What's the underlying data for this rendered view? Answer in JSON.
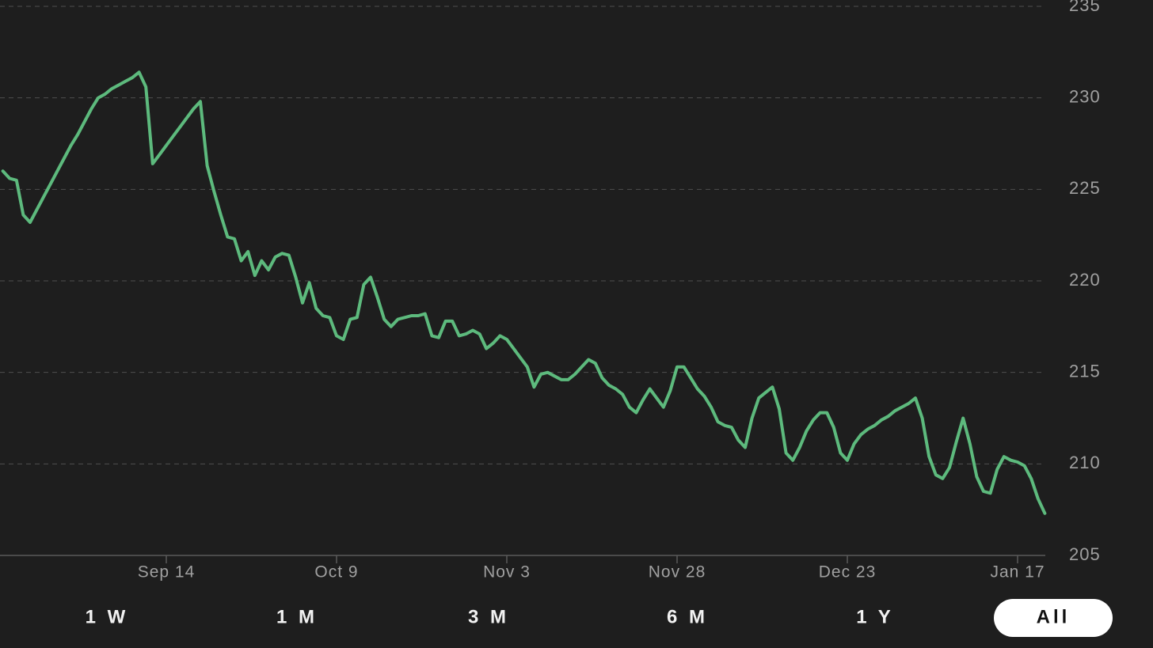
{
  "chart_data": {
    "type": "line",
    "categories": [
      null,
      null,
      null,
      null,
      null,
      null,
      null,
      null,
      null,
      null,
      null,
      null,
      null,
      null,
      null,
      null,
      null,
      null,
      null,
      null,
      null,
      null,
      null,
      null,
      "Sep 14",
      null,
      null,
      null,
      null,
      null,
      null,
      null,
      null,
      null,
      null,
      null,
      null,
      null,
      null,
      null,
      null,
      null,
      null,
      null,
      null,
      null,
      null,
      null,
      null,
      "Oct 9",
      null,
      null,
      null,
      null,
      null,
      null,
      null,
      null,
      null,
      null,
      null,
      null,
      null,
      null,
      null,
      null,
      null,
      null,
      null,
      null,
      null,
      null,
      null,
      null,
      "Nov 3",
      null,
      null,
      null,
      null,
      null,
      null,
      null,
      null,
      null,
      null,
      null,
      null,
      null,
      null,
      null,
      null,
      null,
      null,
      null,
      null,
      null,
      null,
      null,
      null,
      "Nov 28",
      null,
      null,
      null,
      null,
      null,
      null,
      null,
      null,
      null,
      null,
      null,
      null,
      null,
      null,
      null,
      null,
      null,
      null,
      null,
      null,
      null,
      null,
      null,
      null,
      "Dec 23",
      null,
      null,
      null,
      null,
      null,
      null,
      null,
      null,
      null,
      null,
      null,
      null,
      null,
      null,
      null,
      null,
      null,
      null,
      null,
      null,
      null,
      null,
      null,
      null,
      "Jan 17",
      null,
      null,
      null,
      null
    ],
    "series": [
      {
        "color": "#5dba7d",
        "values": [
          226.0,
          225.6,
          225.5,
          223.6,
          223.2,
          223.9,
          224.6,
          225.3,
          226.0,
          226.7,
          227.4,
          228.0,
          228.7,
          229.4,
          230.0,
          230.2,
          230.5,
          230.7,
          230.9,
          231.1,
          231.4,
          230.6,
          226.4,
          226.9,
          227.4,
          227.9,
          228.4,
          228.9,
          229.4,
          229.8,
          226.3,
          224.9,
          223.6,
          222.4,
          222.3,
          221.1,
          221.6,
          220.3,
          221.1,
          220.6,
          221.3,
          221.5,
          221.4,
          220.2,
          218.8,
          219.9,
          218.5,
          218.1,
          218.0,
          217.0,
          216.8,
          217.9,
          218.0,
          219.8,
          220.2,
          219.1,
          217.9,
          217.5,
          217.9,
          218.0,
          218.1,
          218.1,
          218.2,
          217.0,
          216.9,
          217.8,
          217.8,
          217.0,
          217.1,
          217.3,
          217.1,
          216.3,
          216.6,
          217.0,
          216.8,
          216.3,
          215.8,
          215.3,
          214.2,
          214.9,
          215.0,
          214.8,
          214.6,
          214.6,
          214.9,
          215.3,
          215.7,
          215.5,
          214.7,
          214.3,
          214.1,
          213.8,
          213.1,
          212.8,
          213.5,
          214.1,
          213.6,
          213.1,
          214.0,
          215.3,
          215.3,
          214.7,
          214.1,
          213.7,
          213.1,
          212.3,
          212.1,
          212.0,
          211.3,
          210.9,
          212.5,
          213.6,
          213.9,
          214.2,
          213.0,
          210.6,
          210.2,
          210.9,
          211.8,
          212.4,
          212.8,
          212.8,
          212.0,
          210.6,
          210.2,
          211.1,
          211.6,
          211.9,
          212.1,
          212.4,
          212.6,
          212.9,
          213.1,
          213.3,
          213.6,
          212.5,
          210.4,
          209.4,
          209.2,
          209.8,
          211.2,
          212.5,
          211.1,
          209.3,
          208.5,
          208.4,
          209.7,
          210.4,
          210.2,
          210.1,
          209.9,
          209.2,
          208.1,
          207.3
        ]
      }
    ],
    "ylim": [
      205,
      235
    ],
    "yticks": [
      205,
      210,
      215,
      220,
      225,
      230,
      235
    ],
    "grid": true
  },
  "range_buttons": {
    "options": [
      "1 W",
      "1 M",
      "3 M",
      "6 M",
      "1 Y",
      "All"
    ],
    "selected": 5
  }
}
